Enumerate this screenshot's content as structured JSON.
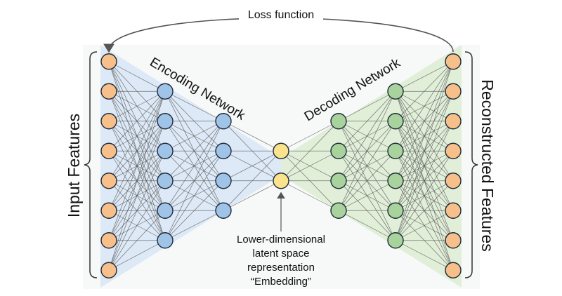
{
  "labels": {
    "loss": "Loss function",
    "encoding": "Encoding Network",
    "decoding": "Decoding Network",
    "input": "Input Features",
    "reconstructed": "Reconstructed Features",
    "latent_lines": [
      "Lower-dimensional",
      "latent space",
      "representation",
      "“Embedding”"
    ]
  },
  "layers": [
    {
      "name": "input",
      "size": 8,
      "color": "#f7c08a"
    },
    {
      "name": "encoder-hidden-1",
      "size": 6,
      "color": "#9fc4e8"
    },
    {
      "name": "encoder-hidden-2",
      "size": 4,
      "color": "#9fc4e8"
    },
    {
      "name": "latent",
      "size": 2,
      "color": "#fbe38e"
    },
    {
      "name": "decoder-hidden-1",
      "size": 4,
      "color": "#a9d39c"
    },
    {
      "name": "decoder-hidden-2",
      "size": 6,
      "color": "#a9d39c"
    },
    {
      "name": "output",
      "size": 8,
      "color": "#f7c08a"
    }
  ],
  "colors": {
    "encoder_region": "#dde9f6",
    "decoder_region": "#e1efd9",
    "panel": "#f7f8f8",
    "edge": "#555555",
    "node_stroke": "#1e2a3a"
  }
}
